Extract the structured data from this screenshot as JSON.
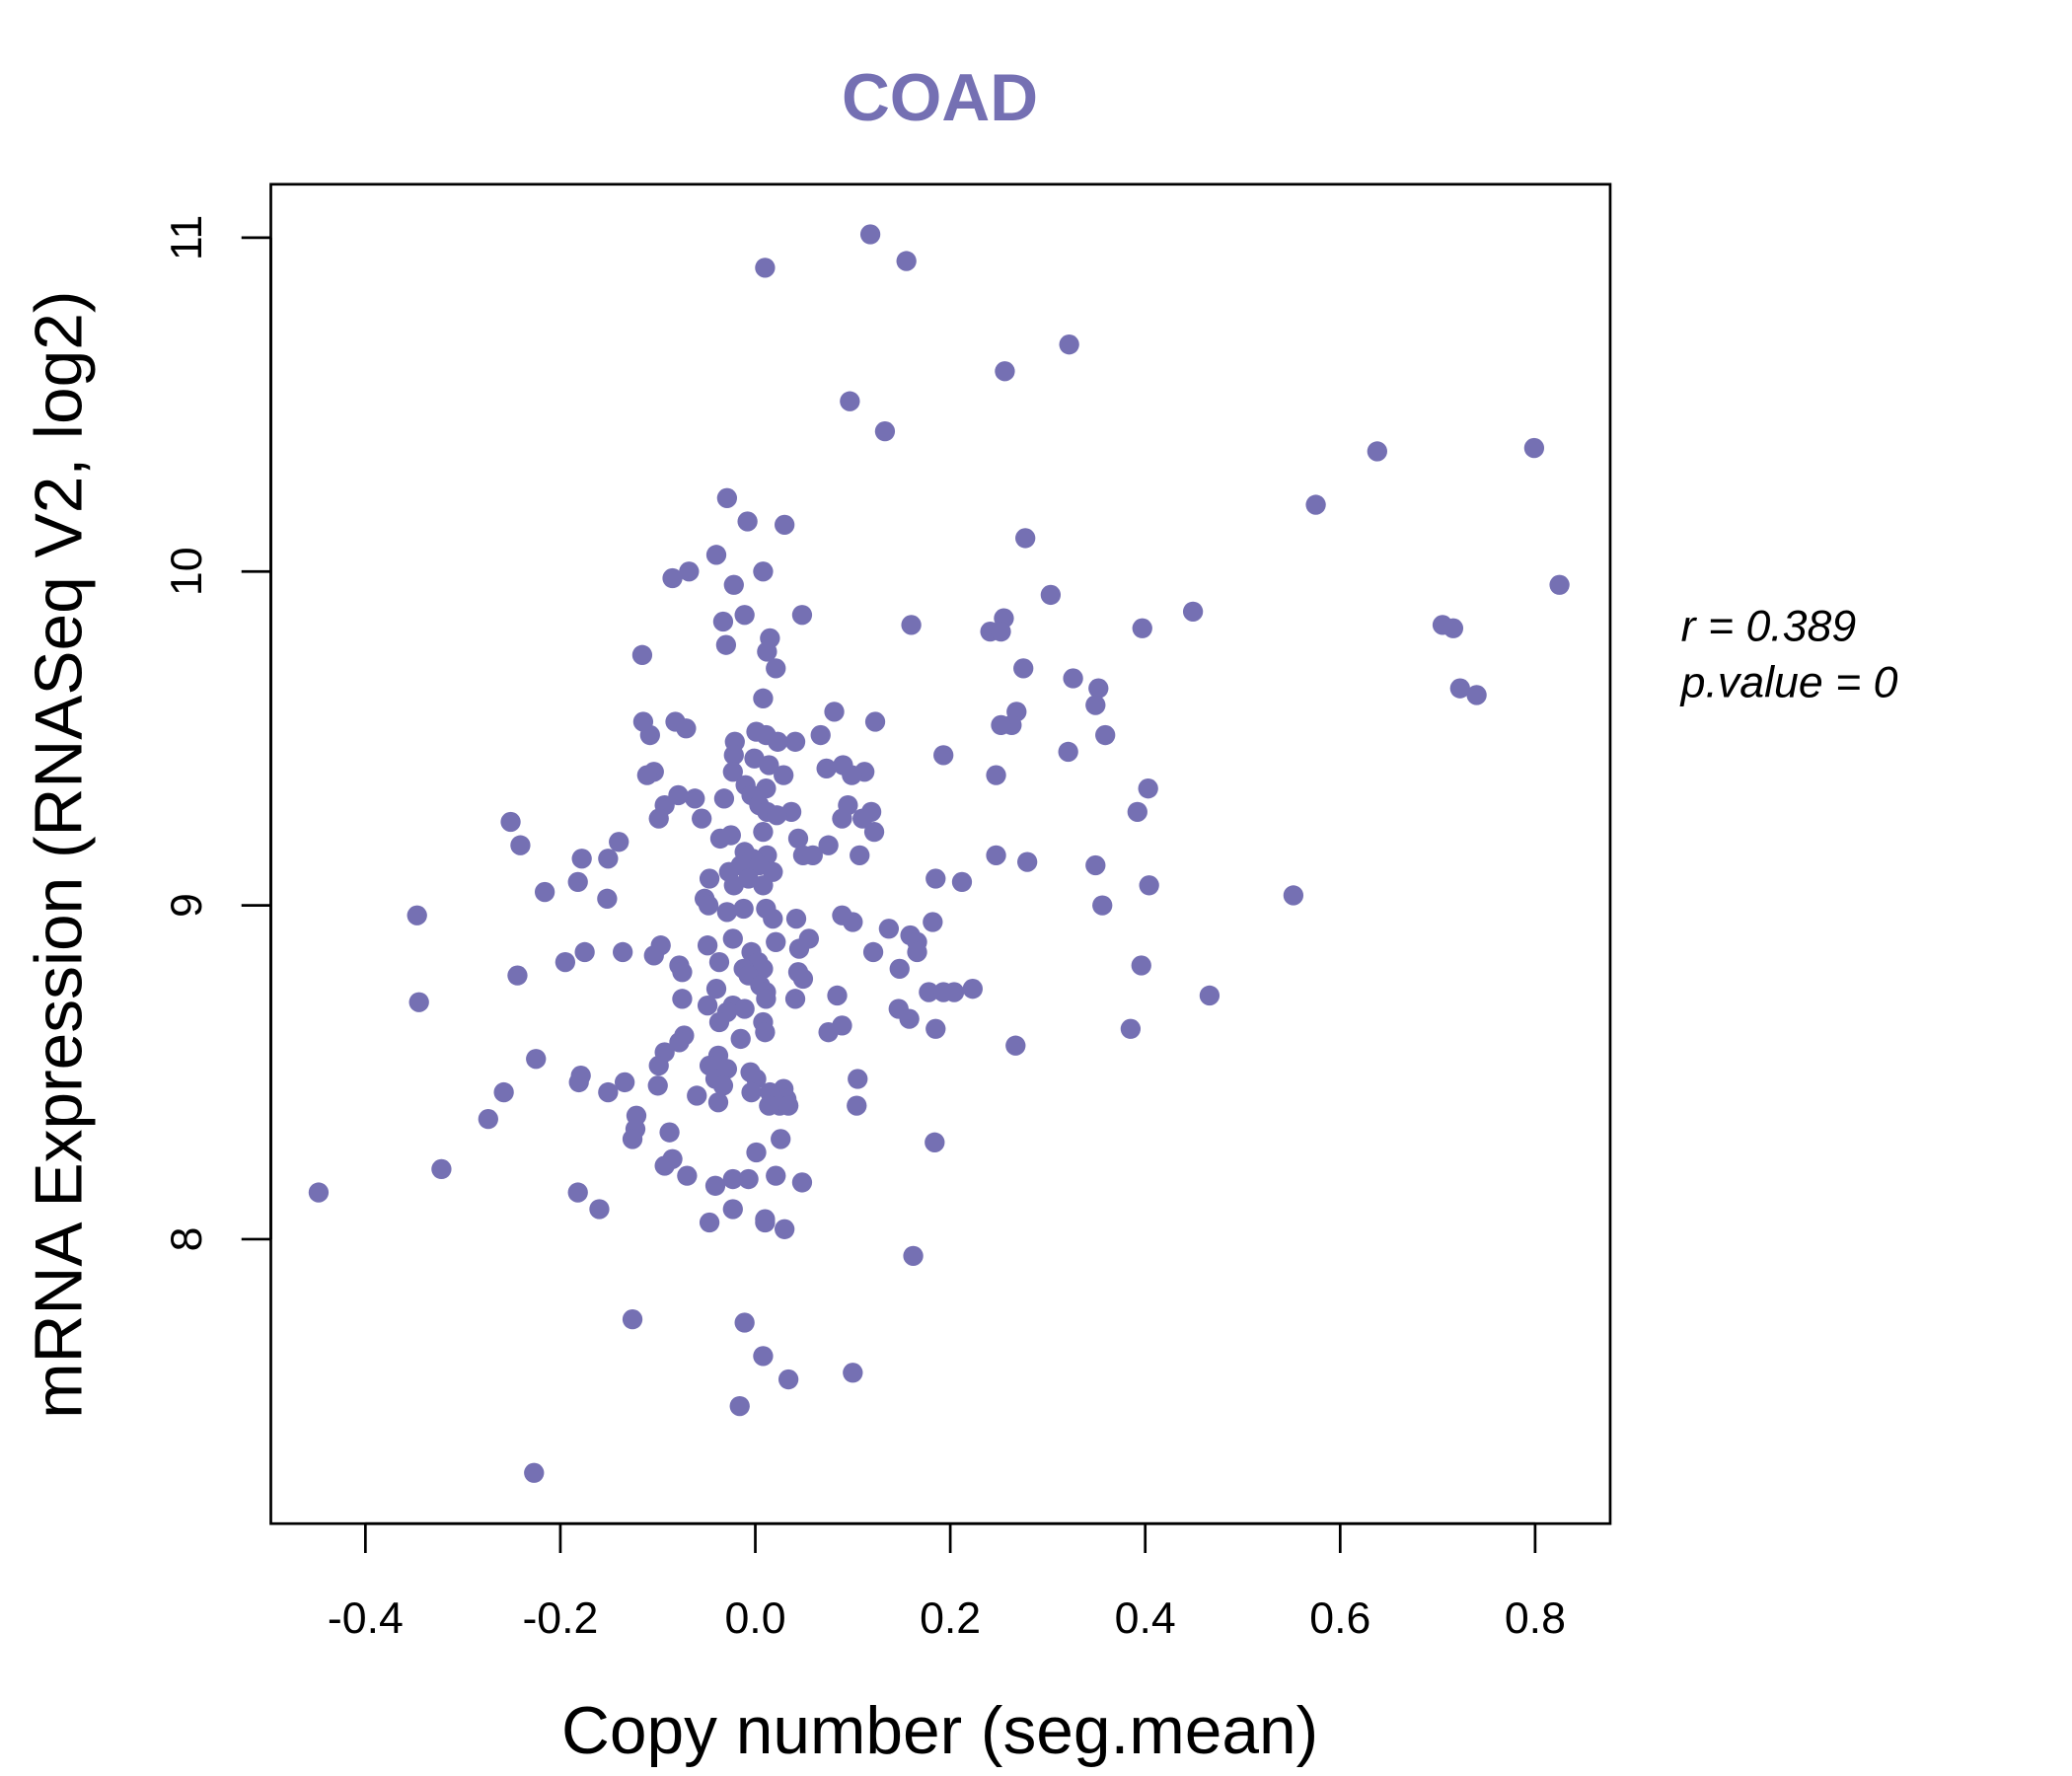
{
  "chart_data": {
    "type": "scatter",
    "title": "COAD",
    "xlabel": "Copy number (seg.mean)",
    "ylabel": "mRNA Expression (RNASeq V2, log2)",
    "xlim": [
      -0.497,
      0.877
    ],
    "ylim": [
      7.148,
      11.16
    ],
    "xticks": [
      -0.4,
      -0.2,
      0.0,
      0.2,
      0.4,
      0.6,
      0.8
    ],
    "xtick_labels": [
      "-0.4",
      "-0.2",
      "0.0",
      "0.2",
      "0.4",
      "0.6",
      "0.8"
    ],
    "yticks": [
      8,
      9,
      10,
      11
    ],
    "ytick_labels": [
      "8",
      "9",
      "10",
      "11"
    ],
    "grid": false,
    "point_color": "#7570b3",
    "annotation": {
      "r_label": "r = 0.389",
      "p_label": "p.value = 0"
    },
    "points": [
      [
        0.118,
        11.01
      ],
      [
        0.155,
        10.93
      ],
      [
        0.01,
        10.91
      ],
      [
        0.322,
        10.68
      ],
      [
        0.256,
        10.6
      ],
      [
        0.097,
        10.51
      ],
      [
        0.133,
        10.42
      ],
      [
        0.638,
        10.36
      ],
      [
        0.799,
        10.37
      ],
      [
        0.575,
        10.2
      ],
      [
        -0.029,
        10.22
      ],
      [
        -0.008,
        10.15
      ],
      [
        0.03,
        10.14
      ],
      [
        0.277,
        10.1
      ],
      [
        -0.04,
        10.05
      ],
      [
        -0.068,
        10.0
      ],
      [
        -0.085,
        9.98
      ],
      [
        0.008,
        10.0
      ],
      [
        -0.022,
        9.96
      ],
      [
        0.303,
        9.93
      ],
      [
        0.825,
        9.96
      ],
      [
        0.449,
        9.88
      ],
      [
        0.048,
        9.87
      ],
      [
        -0.011,
        9.87
      ],
      [
        -0.033,
        9.85
      ],
      [
        0.16,
        9.84
      ],
      [
        0.255,
        9.86
      ],
      [
        0.241,
        9.82
      ],
      [
        0.252,
        9.82
      ],
      [
        0.397,
        9.83
      ],
      [
        0.705,
        9.84
      ],
      [
        0.716,
        9.83
      ],
      [
        0.015,
        9.8
      ],
      [
        -0.03,
        9.78
      ],
      [
        0.012,
        9.76
      ],
      [
        -0.116,
        9.75
      ],
      [
        0.021,
        9.71
      ],
      [
        0.275,
        9.71
      ],
      [
        0.326,
        9.68
      ],
      [
        0.352,
        9.65
      ],
      [
        0.723,
        9.65
      ],
      [
        0.74,
        9.63
      ],
      [
        0.008,
        9.62
      ],
      [
        0.268,
        9.58
      ],
      [
        0.349,
        9.6
      ],
      [
        0.081,
        9.58
      ],
      [
        0.263,
        9.54
      ],
      [
        0.252,
        9.54
      ],
      [
        0.123,
        9.55
      ],
      [
        -0.115,
        9.55
      ],
      [
        -0.082,
        9.55
      ],
      [
        -0.071,
        9.53
      ],
      [
        -0.108,
        9.51
      ],
      [
        0.359,
        9.51
      ],
      [
        -0.021,
        9.49
      ],
      [
        0.001,
        9.52
      ],
      [
        0.011,
        9.51
      ],
      [
        0.041,
        9.49
      ],
      [
        0.023,
        9.49
      ],
      [
        0.067,
        9.51
      ],
      [
        0.321,
        9.46
      ],
      [
        0.193,
        9.45
      ],
      [
        -0.022,
        9.45
      ],
      [
        -0.001,
        9.44
      ],
      [
        0.014,
        9.42
      ],
      [
        0.09,
        9.42
      ],
      [
        0.073,
        9.41
      ],
      [
        0.112,
        9.4
      ],
      [
        0.099,
        9.39
      ],
      [
        -0.023,
        9.4
      ],
      [
        0.029,
        9.39
      ],
      [
        -0.104,
        9.4
      ],
      [
        -0.111,
        9.39
      ],
      [
        0.247,
        9.39
      ],
      [
        -0.01,
        9.36
      ],
      [
        0.011,
        9.35
      ],
      [
        0.403,
        9.35
      ],
      [
        -0.062,
        9.32
      ],
      [
        -0.079,
        9.33
      ],
      [
        -0.032,
        9.32
      ],
      [
        -0.004,
        9.33
      ],
      [
        0.004,
        9.3
      ],
      [
        -0.093,
        9.3
      ],
      [
        0.095,
        9.3
      ],
      [
        0.037,
        9.28
      ],
      [
        0.012,
        9.28
      ],
      [
        0.119,
        9.28
      ],
      [
        0.022,
        9.27
      ],
      [
        0.089,
        9.26
      ],
      [
        0.392,
        9.28
      ],
      [
        0.11,
        9.26
      ],
      [
        -0.099,
        9.26
      ],
      [
        -0.055,
        9.26
      ],
      [
        -0.251,
        9.25
      ],
      [
        0.122,
        9.22
      ],
      [
        0.008,
        9.22
      ],
      [
        -0.025,
        9.21
      ],
      [
        -0.036,
        9.2
      ],
      [
        0.044,
        9.2
      ],
      [
        -0.241,
        9.18
      ],
      [
        -0.14,
        9.19
      ],
      [
        0.075,
        9.18
      ],
      [
        -0.011,
        9.16
      ],
      [
        0.012,
        9.15
      ],
      [
        0.049,
        9.15
      ],
      [
        0.107,
        9.15
      ],
      [
        0.247,
        9.15
      ],
      [
        -0.178,
        9.14
      ],
      [
        -0.151,
        9.14
      ],
      [
        -0.003,
        9.14
      ],
      [
        0.059,
        9.15
      ],
      [
        0.279,
        9.13
      ],
      [
        0.349,
        9.12
      ],
      [
        -0.015,
        9.12
      ],
      [
        0.004,
        9.12
      ],
      [
        0.018,
        9.1
      ],
      [
        -0.027,
        9.1
      ],
      [
        -0.047,
        9.08
      ],
      [
        -0.007,
        9.08
      ],
      [
        0.185,
        9.08
      ],
      [
        -0.022,
        9.06
      ],
      [
        0.008,
        9.06
      ],
      [
        0.212,
        9.07
      ],
      [
        -0.182,
        9.07
      ],
      [
        0.404,
        9.06
      ],
      [
        -0.216,
        9.04
      ],
      [
        0.552,
        9.03
      ],
      [
        -0.052,
        9.02
      ],
      [
        -0.152,
        9.02
      ],
      [
        -0.048,
        9.0
      ],
      [
        -0.012,
        8.99
      ],
      [
        -0.029,
        8.98
      ],
      [
        0.011,
        8.99
      ],
      [
        0.356,
        9.0
      ],
      [
        -0.347,
        8.97
      ],
      [
        0.042,
        8.96
      ],
      [
        0.018,
        8.96
      ],
      [
        0.089,
        8.97
      ],
      [
        0.1,
        8.95
      ],
      [
        0.182,
        8.95
      ],
      [
        0.137,
        8.93
      ],
      [
        0.159,
        8.91
      ],
      [
        -0.023,
        8.9
      ],
      [
        0.055,
        8.9
      ],
      [
        0.021,
        8.89
      ],
      [
        0.166,
        8.89
      ],
      [
        -0.049,
        8.88
      ],
      [
        -0.097,
        8.88
      ],
      [
        0.045,
        8.87
      ],
      [
        -0.004,
        8.86
      ],
      [
        -0.175,
        8.86
      ],
      [
        -0.136,
        8.86
      ],
      [
        -0.104,
        8.85
      ],
      [
        0.121,
        8.86
      ],
      [
        0.166,
        8.86
      ],
      [
        -0.195,
        8.83
      ],
      [
        0.003,
        8.83
      ],
      [
        -0.037,
        8.83
      ],
      [
        -0.078,
        8.82
      ],
      [
        0.008,
        8.81
      ],
      [
        -0.012,
        8.81
      ],
      [
        0.148,
        8.81
      ],
      [
        0.396,
        8.82
      ],
      [
        -0.075,
        8.8
      ],
      [
        -0.244,
        8.79
      ],
      [
        -0.007,
        8.79
      ],
      [
        0.044,
        8.8
      ],
      [
        0.049,
        8.78
      ],
      [
        0.005,
        8.76
      ],
      [
        0.011,
        8.74
      ],
      [
        -0.04,
        8.75
      ],
      [
        0.223,
        8.75
      ],
      [
        0.178,
        8.74
      ],
      [
        0.193,
        8.74
      ],
      [
        0.204,
        8.74
      ],
      [
        0.084,
        8.73
      ],
      [
        0.466,
        8.73
      ],
      [
        -0.075,
        8.72
      ],
      [
        0.011,
        8.72
      ],
      [
        0.041,
        8.72
      ],
      [
        -0.345,
        8.71
      ],
      [
        -0.049,
        8.7
      ],
      [
        -0.023,
        8.7
      ],
      [
        -0.011,
        8.69
      ],
      [
        0.147,
        8.69
      ],
      [
        -0.029,
        8.68
      ],
      [
        0.158,
        8.66
      ],
      [
        0.008,
        8.65
      ],
      [
        0.089,
        8.64
      ],
      [
        -0.037,
        8.65
      ],
      [
        0.075,
        8.62
      ],
      [
        0.385,
        8.63
      ],
      [
        0.185,
        8.63
      ],
      [
        -0.073,
        8.61
      ],
      [
        -0.015,
        8.6
      ],
      [
        0.01,
        8.62
      ],
      [
        -0.078,
        8.59
      ],
      [
        0.267,
        8.58
      ],
      [
        -0.093,
        8.56
      ],
      [
        -0.099,
        8.52
      ],
      [
        -0.225,
        8.54
      ],
      [
        -0.038,
        8.55
      ],
      [
        -0.047,
        8.52
      ],
      [
        -0.029,
        8.51
      ],
      [
        -0.179,
        8.49
      ],
      [
        -0.005,
        8.5
      ],
      [
        -0.134,
        8.47
      ],
      [
        0.105,
        8.48
      ],
      [
        -0.181,
        8.47
      ],
      [
        -0.041,
        8.48
      ],
      [
        0.001,
        8.48
      ],
      [
        -0.1,
        8.46
      ],
      [
        -0.033,
        8.46
      ],
      [
        0.029,
        8.45
      ],
      [
        -0.151,
        8.44
      ],
      [
        -0.258,
        8.44
      ],
      [
        -0.004,
        8.44
      ],
      [
        0.015,
        8.44
      ],
      [
        0.032,
        8.42
      ],
      [
        -0.06,
        8.43
      ],
      [
        -0.038,
        8.41
      ],
      [
        0.014,
        8.4
      ],
      [
        0.025,
        8.4
      ],
      [
        0.034,
        8.4
      ],
      [
        0.104,
        8.4
      ],
      [
        -0.122,
        8.37
      ],
      [
        -0.274,
        8.36
      ],
      [
        -0.123,
        8.33
      ],
      [
        -0.088,
        8.32
      ],
      [
        0.026,
        8.3
      ],
      [
        -0.126,
        8.3
      ],
      [
        0.184,
        8.29
      ],
      [
        0.001,
        8.26
      ],
      [
        -0.085,
        8.24
      ],
      [
        -0.093,
        8.22
      ],
      [
        -0.322,
        8.21
      ],
      [
        -0.07,
        8.19
      ],
      [
        0.021,
        8.19
      ],
      [
        -0.007,
        8.18
      ],
      [
        -0.023,
        8.18
      ],
      [
        -0.041,
        8.16
      ],
      [
        0.048,
        8.17
      ],
      [
        -0.182,
        8.14
      ],
      [
        -0.448,
        8.14
      ],
      [
        -0.16,
        8.09
      ],
      [
        -0.023,
        8.09
      ],
      [
        0.01,
        8.06
      ],
      [
        -0.047,
        8.05
      ],
      [
        0.01,
        8.05
      ],
      [
        0.03,
        8.03
      ],
      [
        0.162,
        7.95
      ],
      [
        -0.126,
        7.76
      ],
      [
        -0.011,
        7.75
      ],
      [
        0.008,
        7.65
      ],
      [
        0.1,
        7.6
      ],
      [
        0.034,
        7.58
      ],
      [
        -0.016,
        7.5
      ],
      [
        -0.227,
        7.3
      ]
    ]
  }
}
